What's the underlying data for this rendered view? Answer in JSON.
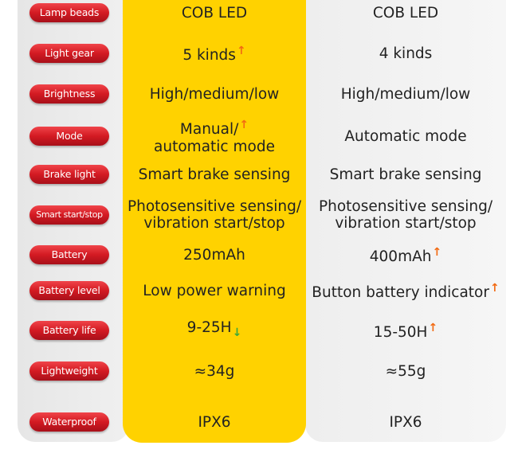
{
  "colors": {
    "highlight": "#ffd200",
    "label_pill": "#d31a22",
    "up_arrow": "#f26a12",
    "down_arrow": "#3aa83a"
  },
  "rows": [
    {
      "label": "Lamp beads",
      "a": "COB LED",
      "b": "COB LED"
    },
    {
      "label": "Light gear",
      "a": "5 kinds",
      "a_icon": "up-arrow",
      "b": "4 kinds"
    },
    {
      "label": "Brightness",
      "a": "High/medium/low",
      "b": "High/medium/low"
    },
    {
      "label": "Mode",
      "a": "Manual/",
      "a2": "automatic mode",
      "a_icon": "up-arrow",
      "b": "Automatic mode"
    },
    {
      "label": "Brake light",
      "a": "Smart brake sensing",
      "b": "Smart brake sensing"
    },
    {
      "label": "Smart start/stop",
      "a": "Photosensitive sensing/",
      "a2": "vibration start/stop",
      "b": "Photosensitive sensing/",
      "b2": "vibration start/stop"
    },
    {
      "label": "Battery",
      "a": "250mAh",
      "b": "400mAh",
      "b_icon": "up-arrow"
    },
    {
      "label": "Battery level",
      "a": "Low power warning",
      "b": "Button battery indicator",
      "b_icon": "up-arrow"
    },
    {
      "label": "Battery life",
      "a": "9-25H",
      "a_icon": "down-arrow",
      "b": "15-50H",
      "b_icon": "up-arrow"
    },
    {
      "label": "Lightweight",
      "a": "≈34g",
      "b": "≈55g"
    },
    {
      "label": "Waterproof",
      "a": "IPX6",
      "b": "IPX6"
    }
  ]
}
